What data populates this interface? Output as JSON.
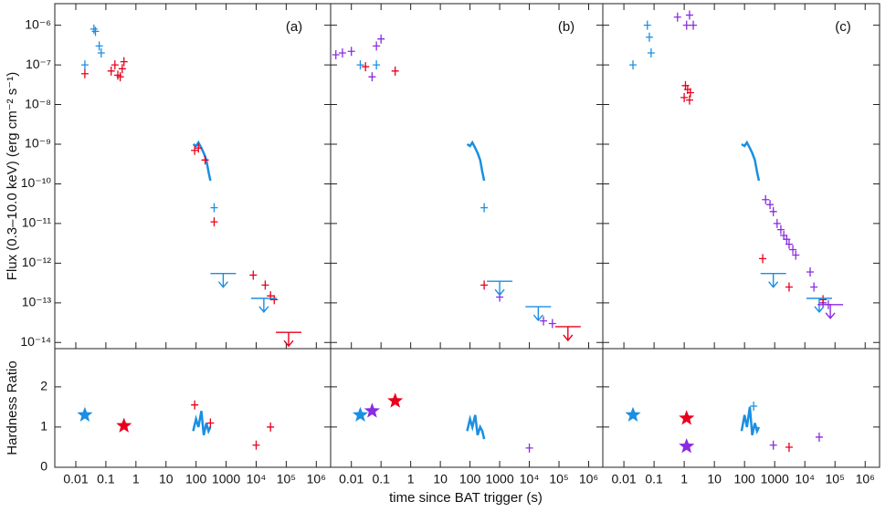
{
  "chart_data": {
    "type": "scatter",
    "xlabel": "time since BAT trigger (s)",
    "ylabel_flux": "Flux (0.3–10.0 keV) (erg cm⁻² s⁻¹)",
    "ylabel_hr": "Hardness Ratio",
    "xlog": true,
    "flux_ylog": true,
    "xlim": [
      0.002,
      3000000
    ],
    "xticks": [
      0.01,
      0.1,
      1,
      10,
      100,
      1000,
      {
        "value": 10000,
        "label": "10⁴"
      },
      {
        "value": 100000,
        "label": "10⁵"
      },
      {
        "value": 1000000,
        "label": "10⁶"
      }
    ],
    "flux_ylim": [
      7e-15,
      3.5e-06
    ],
    "flux_yticks": [
      {
        "value": 1e-06,
        "label": "10⁻⁶"
      },
      {
        "value": 1e-07,
        "label": "10⁻⁷"
      },
      {
        "value": 1e-08,
        "label": "10⁻⁸"
      },
      {
        "value": 1e-09,
        "label": "10⁻⁹"
      },
      {
        "value": 1e-10,
        "label": "10⁻¹⁰"
      },
      {
        "value": 1e-11,
        "label": "10⁻¹¹"
      },
      {
        "value": 1e-12,
        "label": "10⁻¹²"
      },
      {
        "value": 1e-13,
        "label": "10⁻¹³"
      },
      {
        "value": 1e-14,
        "label": "10⁻¹⁴"
      }
    ],
    "hr_ylim": [
      0,
      2.95
    ],
    "hr_yticks": [
      0,
      1,
      2
    ],
    "panels": [
      {
        "label": "(a)",
        "flux_series": [
          {
            "style": "points",
            "color": "#1a8fe3",
            "x": [
              0.02,
              0.04,
              0.045,
              0.06,
              0.07
            ],
            "values": [
              1e-07,
              8e-07,
              7e-07,
              3e-07,
              2e-07
            ]
          },
          {
            "style": "points",
            "color": "#e8001c",
            "x": [
              0.02,
              0.15,
              0.2,
              0.25,
              0.3,
              0.35,
              0.4
            ],
            "values": [
              6e-08,
              7e-08,
              1e-07,
              5.5e-08,
              5e-08,
              8e-08,
              1.2e-07
            ]
          },
          {
            "style": "line",
            "color": "#1a8fe3",
            "x": [
              80,
              100,
              120,
              150,
              180,
              220,
              260,
              300
            ],
            "values": [
              1e-09,
              9e-10,
              1.1e-09,
              8e-10,
              6e-10,
              4e-10,
              2e-10,
              1.2e-10
            ]
          },
          {
            "style": "points",
            "color": "#1a8fe3",
            "x": [
              400
            ],
            "values": [
              2.5e-11
            ]
          },
          {
            "style": "points",
            "color": "#e8001c",
            "x": [
              90,
              120,
              200,
              400,
              8000,
              20000,
              30000,
              40000
            ],
            "values": [
              7e-10,
              8e-10,
              4e-10,
              1.1e-11,
              5e-13,
              2.8e-13,
              1.5e-13,
              1.2e-13
            ]
          },
          {
            "style": "upper_limit",
            "color": "#1a8fe3",
            "x": [
              800,
              18000
            ],
            "values": [
              5.5e-13,
              1.3e-13
            ]
          },
          {
            "style": "upper_limit",
            "color": "#e8001c",
            "x": [
              120000
            ],
            "values": [
              1.8e-14
            ]
          }
        ],
        "hr_series": [
          {
            "style": "star",
            "color": "#1a8fe3",
            "x": [
              0.02
            ],
            "values": [
              1.3
            ]
          },
          {
            "style": "star",
            "color": "#e8001c",
            "x": [
              0.4
            ],
            "values": [
              1.03
            ]
          },
          {
            "style": "line",
            "color": "#1a8fe3",
            "x": [
              80,
              100,
              120,
              150,
              180,
              220,
              260,
              300
            ],
            "values": [
              0.9,
              1.2,
              1.0,
              1.4,
              0.8,
              1.1,
              0.9,
              1.0
            ]
          },
          {
            "style": "points",
            "color": "#e8001c",
            "x": [
              90,
              300,
              10000,
              30000
            ],
            "values": [
              1.55,
              1.1,
              0.55,
              1.0
            ]
          }
        ]
      },
      {
        "label": "(b)",
        "flux_series": [
          {
            "style": "points",
            "color": "#8a2be2",
            "x": [
              0.003,
              0.005,
              0.01,
              0.05,
              0.07,
              0.1
            ],
            "values": [
              1.8e-07,
              2e-07,
              2.2e-07,
              5e-08,
              3e-07,
              4.5e-07
            ]
          },
          {
            "style": "points",
            "color": "#1a8fe3",
            "x": [
              0.02,
              0.07
            ],
            "values": [
              1e-07,
              1e-07
            ]
          },
          {
            "style": "points",
            "color": "#e8001c",
            "x": [
              0.03,
              0.3
            ],
            "values": [
              9e-08,
              7e-08
            ]
          },
          {
            "style": "line",
            "color": "#1a8fe3",
            "x": [
              80,
              100,
              120,
              150,
              180,
              220,
              260,
              300
            ],
            "values": [
              1e-09,
              9e-10,
              1.1e-09,
              8e-10,
              6e-10,
              4e-10,
              2e-10,
              1.2e-10
            ]
          },
          {
            "style": "points",
            "color": "#1a8fe3",
            "x": [
              300
            ],
            "values": [
              2.5e-11
            ]
          },
          {
            "style": "points",
            "color": "#e8001c",
            "x": [
              300
            ],
            "values": [
              2.8e-13
            ]
          },
          {
            "style": "points",
            "color": "#8a2be2",
            "x": [
              1000,
              30000,
              60000
            ],
            "values": [
              1.4e-13,
              3.5e-14,
              3e-14
            ]
          },
          {
            "style": "upper_limit",
            "color": "#1a8fe3",
            "x": [
              1000,
              20000
            ],
            "values": [
              3.5e-13,
              8e-14
            ]
          },
          {
            "style": "upper_limit",
            "color": "#e8001c",
            "x": [
              200000
            ],
            "values": [
              2.5e-14
            ]
          }
        ],
        "hr_series": [
          {
            "style": "star",
            "color": "#1a8fe3",
            "x": [
              0.02
            ],
            "values": [
              1.3
            ]
          },
          {
            "style": "star",
            "color": "#8a2be2",
            "x": [
              0.05
            ],
            "values": [
              1.4
            ]
          },
          {
            "style": "star",
            "color": "#e8001c",
            "x": [
              0.3
            ],
            "values": [
              1.65
            ]
          },
          {
            "style": "line",
            "color": "#1a8fe3",
            "x": [
              80,
              100,
              120,
              150,
              180,
              220,
              260,
              300
            ],
            "values": [
              0.9,
              1.2,
              1.0,
              1.3,
              0.8,
              1.0,
              0.9,
              0.7
            ]
          },
          {
            "style": "points",
            "color": "#8a2be2",
            "x": [
              10000
            ],
            "values": [
              0.48
            ]
          }
        ]
      },
      {
        "label": "(c)",
        "flux_series": [
          {
            "style": "points",
            "color": "#1a8fe3",
            "x": [
              0.02,
              0.06,
              0.07,
              0.08
            ],
            "values": [
              1e-07,
              1e-06,
              5e-07,
              2e-07
            ]
          },
          {
            "style": "points",
            "color": "#8a2be2",
            "x": [
              0.6,
              1.2,
              1.5,
              2
            ],
            "values": [
              1.6e-06,
              1e-06,
              1.8e-06,
              1e-06
            ]
          },
          {
            "style": "points",
            "color": "#e8001c",
            "x": [
              1.1,
              1.3,
              1.6,
              1,
              1.5
            ],
            "values": [
              3e-08,
              2.4e-08,
              2e-08,
              1.5e-08,
              1.3e-08
            ]
          },
          {
            "style": "line",
            "color": "#1a8fe3",
            "x": [
              80,
              100,
              120,
              150,
              180,
              220,
              260,
              300
            ],
            "values": [
              1e-09,
              9e-10,
              1.1e-09,
              8e-10,
              6e-10,
              4e-10,
              2e-10,
              1.2e-10
            ]
          },
          {
            "style": "points",
            "color": "#8a2be2",
            "x": [
              500,
              700,
              900,
              1200,
              1600,
              2000,
              2500,
              3000,
              4000,
              5000,
              15000,
              20000,
              40000,
              60000
            ],
            "values": [
              4e-11,
              3e-11,
              2e-11,
              1e-11,
              7e-12,
              5e-12,
              4e-12,
              3e-12,
              2.2e-12,
              1.6e-12,
              6e-13,
              2.5e-13,
              1e-13,
              9e-14
            ]
          },
          {
            "style": "points",
            "color": "#e8001c",
            "x": [
              400,
              3000,
              40000
            ],
            "values": [
              1.3e-12,
              2.5e-13,
              1.2e-13
            ]
          },
          {
            "style": "upper_limit",
            "color": "#1a8fe3",
            "x": [
              900,
              30000
            ],
            "values": [
              5.5e-13,
              1.3e-13
            ]
          },
          {
            "style": "upper_limit",
            "color": "#8a2be2",
            "x": [
              70000
            ],
            "values": [
              9e-14
            ]
          }
        ],
        "hr_series": [
          {
            "style": "star",
            "color": "#1a8fe3",
            "x": [
              0.02
            ],
            "values": [
              1.3
            ]
          },
          {
            "style": "star",
            "color": "#e8001c",
            "x": [
              1.2
            ],
            "values": [
              1.22
            ]
          },
          {
            "style": "star",
            "color": "#8a2be2",
            "x": [
              1.2
            ],
            "values": [
              0.52
            ]
          },
          {
            "style": "line",
            "color": "#1a8fe3",
            "x": [
              80,
              100,
              120,
              150,
              180,
              220,
              260,
              300
            ],
            "values": [
              0.9,
              1.3,
              1.0,
              1.5,
              0.8,
              1.1,
              0.9,
              1.0
            ]
          },
          {
            "style": "points",
            "color": "#1a8fe3",
            "x": [
              200
            ],
            "values": [
              1.52
            ]
          },
          {
            "style": "points",
            "color": "#e8001c",
            "x": [
              3000
            ],
            "values": [
              0.5
            ]
          },
          {
            "style": "points",
            "color": "#8a2be2",
            "x": [
              900,
              30000
            ],
            "values": [
              0.55,
              0.75
            ]
          }
        ]
      }
    ]
  }
}
